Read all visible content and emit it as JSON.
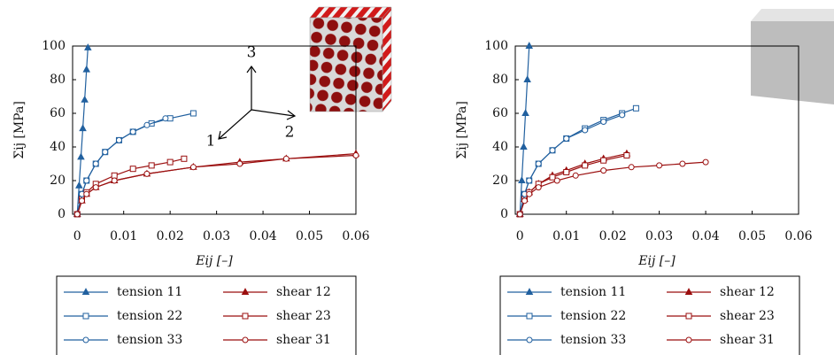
{
  "chart_data": [
    {
      "type": "line",
      "xlabel": "Eij [–]",
      "ylabel": "Σij [MPa]",
      "xlim": [
        -0.001,
        0.06
      ],
      "ylim": [
        0,
        100
      ],
      "xticks": [
        0,
        0.01,
        0.02,
        0.03,
        0.04,
        0.05,
        0.06
      ],
      "yticks": [
        0,
        20,
        40,
        60,
        80,
        100
      ],
      "legend": "bottom",
      "annotations": [
        "1",
        "2",
        "3"
      ],
      "series": [
        {
          "name": "tension 11",
          "color": "#21609f",
          "marker": "triangle",
          "x": [
            0,
            0.0004,
            0.0008,
            0.0012,
            0.0016,
            0.002,
            0.0023
          ],
          "values": [
            0,
            17,
            34,
            51,
            68,
            86,
            99
          ]
        },
        {
          "name": "shear 12",
          "color": "#9b0f0f",
          "marker": "triangle",
          "x": [
            0,
            0.001,
            0.002,
            0.004,
            0.008,
            0.015,
            0.025,
            0.035,
            0.045,
            0.06
          ],
          "values": [
            0,
            8,
            12,
            16,
            20,
            24,
            28,
            31,
            33,
            36
          ]
        },
        {
          "name": "tension 22",
          "color": "#21609f",
          "marker": "square",
          "x": [
            0,
            0.001,
            0.002,
            0.004,
            0.006,
            0.009,
            0.012,
            0.016,
            0.02,
            0.025
          ],
          "values": [
            0,
            12,
            20,
            30,
            37,
            44,
            49,
            54,
            57,
            60
          ]
        },
        {
          "name": "shear 23",
          "color": "#9b0f0f",
          "marker": "square",
          "x": [
            0,
            0.001,
            0.002,
            0.004,
            0.008,
            0.012,
            0.016,
            0.02,
            0.023
          ],
          "values": [
            0,
            9,
            13,
            18,
            23,
            27,
            29,
            31,
            33
          ]
        },
        {
          "name": "tension 33",
          "color": "#21609f",
          "marker": "circle",
          "x": [
            0,
            0.001,
            0.002,
            0.004,
            0.006,
            0.009,
            0.012,
            0.015,
            0.019
          ],
          "values": [
            0,
            12,
            20,
            30,
            37,
            44,
            49,
            53,
            57
          ]
        },
        {
          "name": "shear 31",
          "color": "#9b0f0f",
          "marker": "circle",
          "x": [
            0,
            0.001,
            0.002,
            0.004,
            0.008,
            0.015,
            0.025,
            0.035,
            0.045,
            0.06
          ],
          "values": [
            0,
            8,
            12,
            16,
            20,
            24,
            28,
            30,
            33,
            35
          ]
        }
      ]
    },
    {
      "type": "line",
      "xlabel": "Eij [–]",
      "ylabel": "Σij [MPa]",
      "xlim": [
        -0.001,
        0.06
      ],
      "ylim": [
        0,
        100
      ],
      "xticks": [
        0,
        0.01,
        0.02,
        0.03,
        0.04,
        0.05,
        0.06
      ],
      "yticks": [
        0,
        20,
        40,
        60,
        80,
        100
      ],
      "legend": "bottom",
      "series": [
        {
          "name": "tension 11",
          "color": "#21609f",
          "marker": "triangle",
          "x": [
            0,
            0.0004,
            0.0008,
            0.0012,
            0.0016,
            0.002
          ],
          "values": [
            0,
            20,
            40,
            60,
            80,
            100
          ]
        },
        {
          "name": "shear 12",
          "color": "#9b0f0f",
          "marker": "triangle",
          "x": [
            0,
            0.001,
            0.002,
            0.004,
            0.007,
            0.01,
            0.014,
            0.018,
            0.023
          ],
          "values": [
            0,
            9,
            13,
            18,
            23,
            26,
            30,
            33,
            36
          ]
        },
        {
          "name": "tension 22",
          "color": "#21609f",
          "marker": "square",
          "x": [
            0,
            0.001,
            0.002,
            0.004,
            0.007,
            0.01,
            0.014,
            0.018,
            0.022,
            0.025
          ],
          "values": [
            0,
            12,
            20,
            30,
            38,
            45,
            51,
            56,
            60,
            63
          ]
        },
        {
          "name": "shear 23",
          "color": "#9b0f0f",
          "marker": "square",
          "x": [
            0,
            0.001,
            0.002,
            0.004,
            0.007,
            0.01,
            0.014,
            0.018,
            0.023
          ],
          "values": [
            0,
            9,
            13,
            18,
            22,
            25,
            29,
            32,
            35
          ]
        },
        {
          "name": "tension 33",
          "color": "#21609f",
          "marker": "circle",
          "x": [
            0,
            0.001,
            0.002,
            0.004,
            0.007,
            0.01,
            0.014,
            0.018,
            0.022
          ],
          "values": [
            0,
            12,
            20,
            30,
            38,
            45,
            50,
            55,
            59
          ]
        },
        {
          "name": "shear 31",
          "color": "#9b0f0f",
          "marker": "circle",
          "x": [
            0,
            0.001,
            0.002,
            0.004,
            0.008,
            0.012,
            0.018,
            0.024,
            0.03,
            0.035,
            0.04
          ],
          "values": [
            0,
            8,
            12,
            16,
            20,
            23,
            26,
            28,
            29,
            30,
            31
          ]
        }
      ]
    }
  ]
}
